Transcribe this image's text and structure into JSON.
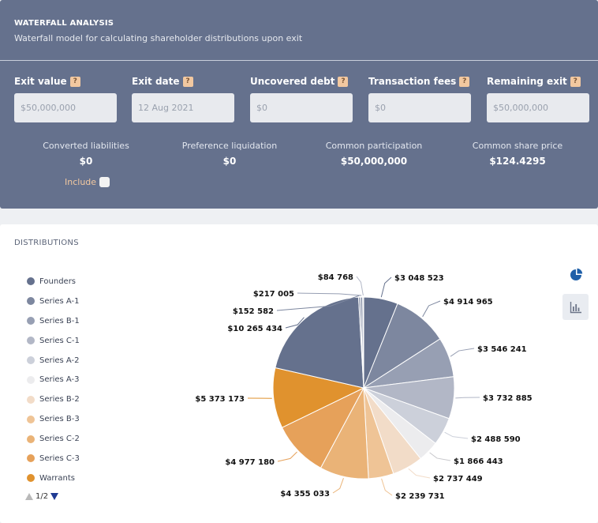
{
  "header": {
    "title": "WATERFALL ANALYSIS",
    "subtitle": "Waterfall model for calculating shareholder distributions upon exit"
  },
  "help_glyph": "?",
  "fields": [
    {
      "label": "Exit value",
      "placeholder": "$50,000,000"
    },
    {
      "label": "Exit date",
      "placeholder": "12 Aug 2021"
    },
    {
      "label": "Uncovered debt",
      "placeholder": "$0"
    },
    {
      "label": "Transaction fees",
      "placeholder": "$0"
    },
    {
      "label": "Remaining exit",
      "placeholder": "$50,000,000"
    }
  ],
  "metrics": [
    {
      "label": "Converted liabilities",
      "value": "$0"
    },
    {
      "label": "Preference liquidation",
      "value": "$0"
    },
    {
      "label": "Common participation",
      "value": "$50,000,000"
    },
    {
      "label": "Common share price",
      "value": "$124.4295"
    }
  ],
  "include_label": "Include",
  "distributions": {
    "title": "DISTRIBUTIONS",
    "legend": [
      {
        "name": "Founders",
        "color": "#65718d"
      },
      {
        "name": "Series A-1",
        "color": "#7d879f"
      },
      {
        "name": "Series B-1",
        "color": "#979fb3"
      },
      {
        "name": "Series C-1",
        "color": "#b2b7c6"
      },
      {
        "name": "Series A-2",
        "color": "#ccd0da"
      },
      {
        "name": "Series A-3",
        "color": "#ececee"
      },
      {
        "name": "Series B-2",
        "color": "#f2dcc8"
      },
      {
        "name": "Series B-3",
        "color": "#efc496"
      },
      {
        "name": "Series C-2",
        "color": "#eab377"
      },
      {
        "name": "Series C-3",
        "color": "#e6a15a"
      },
      {
        "name": "Warrants",
        "color": "#e0922e"
      }
    ],
    "pager": "1/2"
  },
  "chart_data": {
    "type": "pie",
    "slices": [
      {
        "label": "$3 048 523",
        "value": 3048523,
        "color": "#65718d"
      },
      {
        "label": "$4 914 965",
        "value": 4914965,
        "color": "#7d879f"
      },
      {
        "label": "$3 546 241",
        "value": 3546241,
        "color": "#979fb3"
      },
      {
        "label": "$3 732 885",
        "value": 3732885,
        "color": "#b2b7c6"
      },
      {
        "label": "$2 488 590",
        "value": 2488590,
        "color": "#ccd0da"
      },
      {
        "label": "$1 866 443",
        "value": 1866443,
        "color": "#ececee"
      },
      {
        "label": "$2 737 449",
        "value": 2737449,
        "color": "#f2dcc8"
      },
      {
        "label": "$2 239 731",
        "value": 2239731,
        "color": "#efc496"
      },
      {
        "label": "$4 355 033",
        "value": 4355033,
        "color": "#eab377"
      },
      {
        "label": "$4 977 180",
        "value": 4977180,
        "color": "#e6a15a"
      },
      {
        "label": "$5 373 173",
        "value": 5373173,
        "color": "#e0922e"
      },
      {
        "label": "$10 265 434",
        "value": 10265434,
        "color": "#65718d"
      },
      {
        "label": "$152 582",
        "value": 152582,
        "color": "#7d879f"
      },
      {
        "label": "$217 005",
        "value": 217005,
        "color": "#979fb3"
      },
      {
        "label": "$84 768",
        "value": 84768,
        "color": "#b2b7c6"
      }
    ]
  }
}
